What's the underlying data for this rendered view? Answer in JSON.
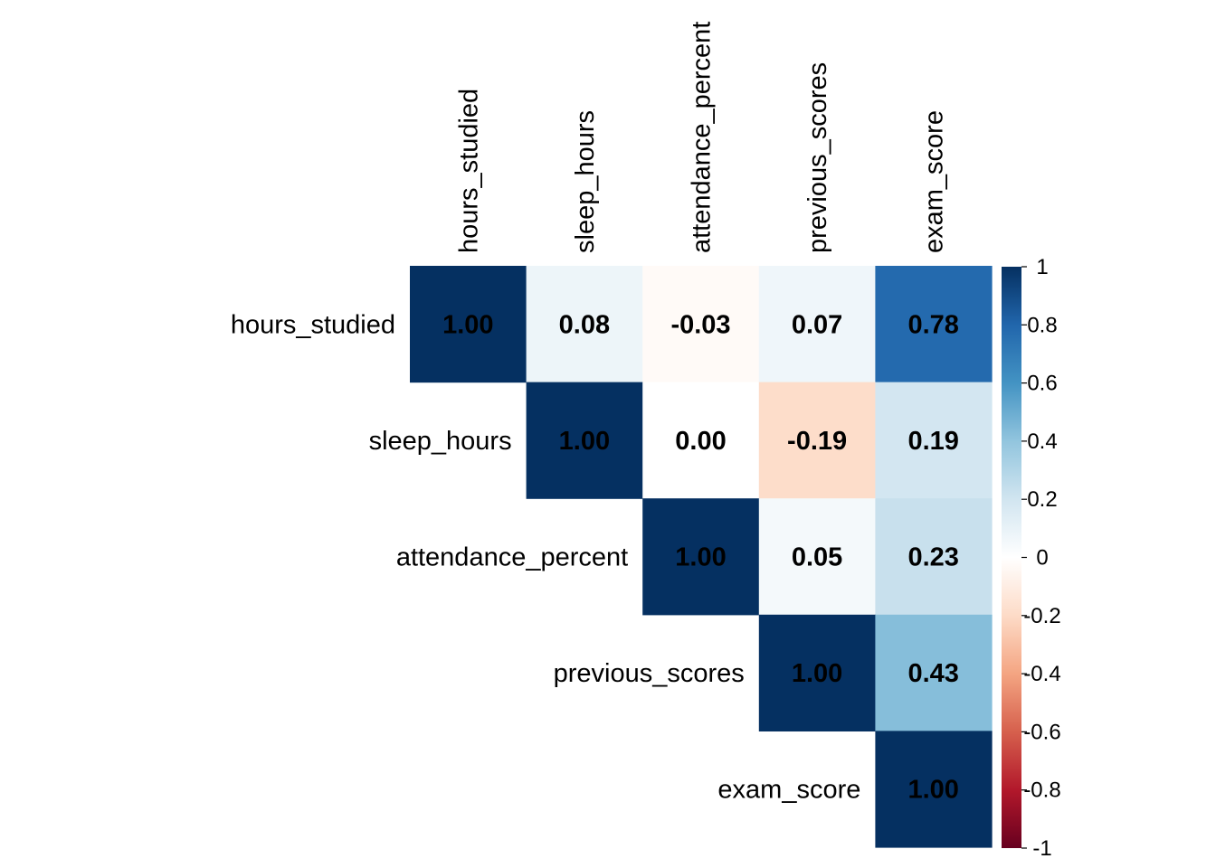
{
  "chart_data": {
    "type": "heatmap",
    "variables": [
      "hours_studied",
      "sleep_hours",
      "attendance_percent",
      "previous_scores",
      "exam_score"
    ],
    "matrix": [
      [
        1.0,
        0.08,
        -0.03,
        0.07,
        0.78
      ],
      [
        0.08,
        1.0,
        0.0,
        -0.19,
        0.19
      ],
      [
        -0.03,
        0.0,
        1.0,
        0.05,
        0.23
      ],
      [
        0.07,
        -0.19,
        0.05,
        1.0,
        0.43
      ],
      [
        0.78,
        0.19,
        0.23,
        0.43,
        1.0
      ]
    ],
    "display": "upper-triangle",
    "value_labels": [
      [
        "1.00",
        "0.08",
        "-0.03",
        "0.07",
        "0.78"
      ],
      [
        "",
        "1.00",
        "0.00",
        "-0.19",
        "0.19"
      ],
      [
        "",
        "",
        "1.00",
        "0.05",
        "0.23"
      ],
      [
        "",
        "",
        "",
        "1.00",
        "0.43"
      ],
      [
        "",
        "",
        "",
        "",
        "1.00"
      ]
    ],
    "colorbar": {
      "range": [
        -1,
        1
      ],
      "ticks": [
        "1",
        "0.8",
        "0.6",
        "0.4",
        "0.2",
        "0",
        "-0.2",
        "-0.4",
        "-0.6",
        "-0.8",
        "-1"
      ],
      "placement": "right"
    },
    "colors": [
      "#67001F",
      "#B2182B",
      "#D6604D",
      "#F4A582",
      "#FDDBC7",
      "#FFFFFF",
      "#D1E5F0",
      "#92C5DE",
      "#4393C3",
      "#2166AC",
      "#053061"
    ]
  }
}
